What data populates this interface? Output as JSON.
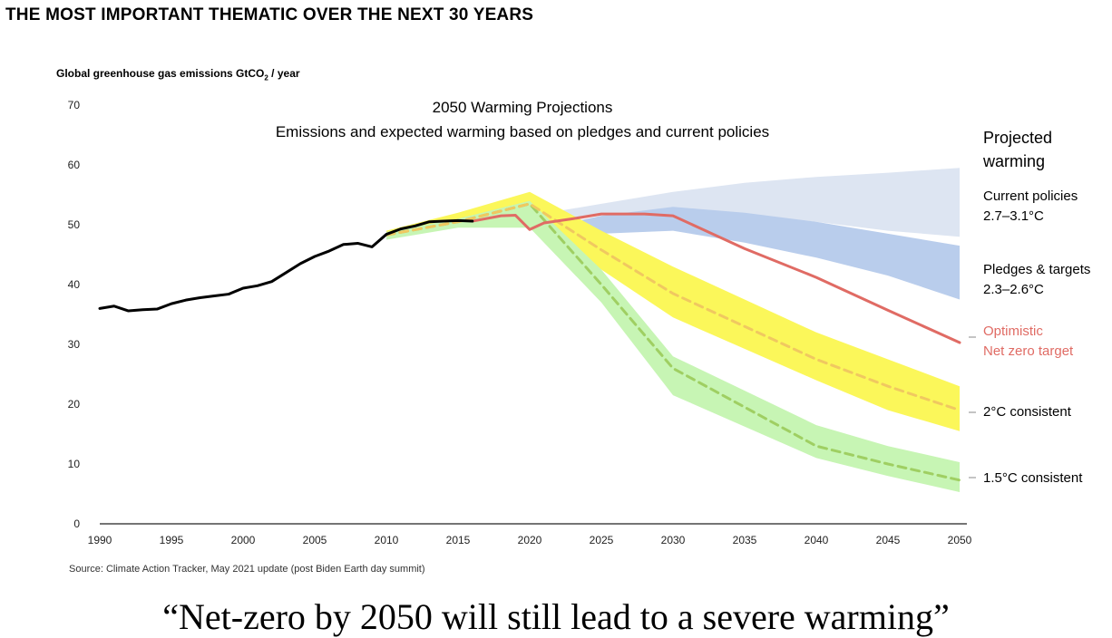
{
  "header": {
    "title": "THE MOST IMPORTANT THEMATIC OVER THE NEXT 30 YEARS"
  },
  "chart_data": {
    "type": "line",
    "title": "2050 Warming Projections",
    "subtitle": "Emissions and expected warming based on pledges and current policies",
    "ylabel_text": "Global greenhouse gas emissions GtCO",
    "ylabel_sub": "2",
    "ylabel_suffix": " / year",
    "xlabel": "",
    "xlim": [
      1990,
      2050
    ],
    "ylim": [
      0,
      70
    ],
    "x_ticks": [
      "1990",
      "1995",
      "2000",
      "2005",
      "2010",
      "2015",
      "2020",
      "2025",
      "2030",
      "2035",
      "2040",
      "2045",
      "2050"
    ],
    "y_ticks": [
      "0",
      "10",
      "20",
      "30",
      "40",
      "50",
      "60",
      "70"
    ],
    "grid": false,
    "legend_heading": "Projected warming",
    "colors": {
      "historical": "#000000",
      "optimistic": "#e06b64",
      "two_c": "#f0c860",
      "one_five_c": "#9fcf62",
      "current_policies_band": "#dde5f2",
      "pledges_band": "#b9cdec",
      "two_c_band": "#fbf75a",
      "one_five_c_band": "#c7f5b4"
    },
    "historical": {
      "x": [
        1990,
        1991,
        1992,
        1993,
        1994,
        1995,
        1996,
        1997,
        1998,
        1999,
        2000,
        2001,
        2002,
        2003,
        2004,
        2005,
        2006,
        2007,
        2008,
        2009,
        2010,
        2011,
        2012,
        2013,
        2014,
        2015,
        2016
      ],
      "y": [
        36.0,
        36.4,
        35.6,
        35.8,
        35.9,
        36.8,
        37.4,
        37.8,
        38.1,
        38.4,
        39.4,
        39.8,
        40.5,
        42.0,
        43.5,
        44.7,
        45.6,
        46.7,
        46.9,
        46.3,
        48.4,
        49.3,
        49.8,
        50.5,
        50.6,
        50.7,
        50.6
      ]
    },
    "optimistic": {
      "name": "Optimistic Net zero target",
      "x": [
        2016,
        2018,
        2019,
        2020,
        2021,
        2023,
        2025,
        2028,
        2030,
        2035,
        2040,
        2045,
        2050
      ],
      "y": [
        50.6,
        51.5,
        51.6,
        49.2,
        50.3,
        51.0,
        51.8,
        51.8,
        51.5,
        46.0,
        41.2,
        35.7,
        30.3
      ]
    },
    "two_c": {
      "name": "2°C consistent",
      "x": [
        2010,
        2015,
        2020,
        2025,
        2030,
        2040,
        2045,
        2050
      ],
      "y": [
        48.3,
        50.5,
        53.5,
        45.8,
        38.5,
        27.5,
        23.0,
        19.0
      ],
      "band_upper": [
        49.0,
        52.0,
        55.5,
        49.0,
        43.0,
        32.0,
        27.5,
        23.0
      ],
      "band_lower": [
        47.8,
        49.8,
        50.5,
        42.5,
        34.5,
        24.0,
        19.0,
        15.5
      ]
    },
    "one_five_c": {
      "name": "1.5°C consistent",
      "x": [
        2010,
        2015,
        2020,
        2025,
        2030,
        2040,
        2045,
        2050
      ],
      "y": [
        48.3,
        50.5,
        53.5,
        40.0,
        26.0,
        13.0,
        10.0,
        7.3
      ],
      "band_upper": [
        48.8,
        51.0,
        54.0,
        42.5,
        28.0,
        16.5,
        13.0,
        10.3
      ],
      "band_lower": [
        47.5,
        49.5,
        49.5,
        37.0,
        21.5,
        11.0,
        8.0,
        5.3
      ]
    },
    "current_policies_band": {
      "name": "Current policies",
      "range": "2.7–3.1°C",
      "x": [
        2020,
        2025,
        2030,
        2035,
        2040,
        2045,
        2050
      ],
      "upper": [
        51.5,
        53.5,
        55.5,
        57.0,
        58.0,
        58.7,
        59.5
      ],
      "lower": [
        50.5,
        51.5,
        52.5,
        51.5,
        50.5,
        49.0,
        48.0
      ]
    },
    "pledges_band": {
      "name": "Pledges & targets",
      "range": "2.3–2.6°C",
      "x": [
        2023,
        2025,
        2030,
        2035,
        2040,
        2045,
        2050
      ],
      "upper": [
        50.5,
        51.5,
        53.0,
        52.0,
        50.5,
        48.5,
        46.5
      ],
      "lower": [
        48.5,
        48.5,
        49.0,
        47.0,
        44.5,
        41.5,
        37.5
      ]
    },
    "legend": {
      "current_policies": "Current policies",
      "current_policies_range": "2.7–3.1°C",
      "pledges": "Pledges & targets",
      "pledges_range": "2.3–2.6°C",
      "optimistic_line1": "Optimistic",
      "optimistic_line2": "Net zero target",
      "two_c": "2°C consistent",
      "one_five_c": "1.5°C consistent"
    }
  },
  "source": "Source: Climate Action Tracker, May 2021 update (post Biden Earth day summit)",
  "quote": "“Net-zero by 2050 will still lead to a severe warming”"
}
